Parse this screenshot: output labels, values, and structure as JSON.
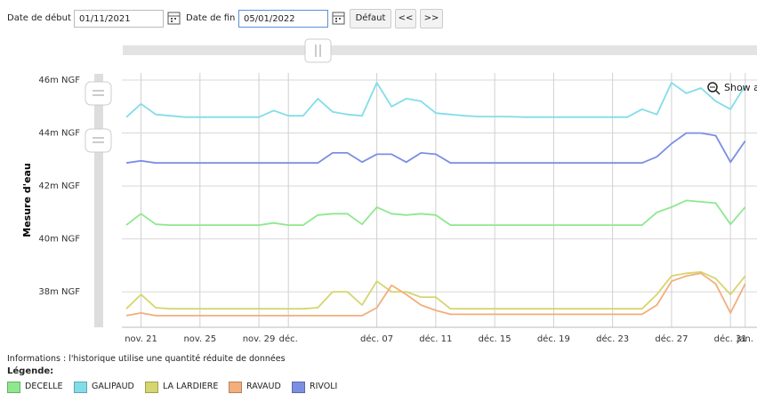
{
  "controls": {
    "start_label": "Date de début :",
    "start_value": "01/11/2021",
    "end_label": "Date de fin :",
    "end_value": "05/01/2022",
    "default_button": "Défaut",
    "prev": "<<",
    "next": ">>"
  },
  "chart_data": {
    "type": "line",
    "ylabel": "Mesure d'eau",
    "zoom_button": "Show all",
    "x": [
      19,
      20,
      21,
      22,
      23,
      24,
      25,
      26,
      27,
      28,
      29,
      30,
      31,
      32,
      33,
      34,
      35,
      36,
      37,
      38,
      39,
      40,
      41,
      42,
      43,
      44,
      45,
      46,
      47,
      48,
      49,
      50,
      51,
      52,
      53,
      54,
      55,
      56,
      57,
      58,
      59,
      60,
      61
    ],
    "xlim": [
      18.7,
      61.8
    ],
    "xticks": [
      {
        "value": 20,
        "label": "nov. 21"
      },
      {
        "value": 24,
        "label": "nov. 25"
      },
      {
        "value": 28,
        "label": "nov. 29"
      },
      {
        "value": 30,
        "label": "déc."
      },
      {
        "value": 36,
        "label": "déc. 07"
      },
      {
        "value": 40,
        "label": "déc. 11"
      },
      {
        "value": 44,
        "label": "déc. 15"
      },
      {
        "value": 48,
        "label": "déc. 19"
      },
      {
        "value": 52,
        "label": "déc. 23"
      },
      {
        "value": 56,
        "label": "déc. 27"
      },
      {
        "value": 60,
        "label": "déc. 31"
      },
      {
        "value": 61,
        "label": "jan."
      }
    ],
    "ylim": [
      36.66,
      46.27
    ],
    "yticks": [
      {
        "value": 38,
        "label": "38m NGF"
      },
      {
        "value": 40,
        "label": "40m NGF"
      },
      {
        "value": 42,
        "label": "42m NGF"
      },
      {
        "value": 44,
        "label": "44m NGF"
      },
      {
        "value": 46,
        "label": "46m NGF"
      }
    ],
    "grid": true,
    "series": [
      {
        "name": "DECELLE",
        "color": "#8ee88e",
        "values": [
          40.52,
          40.95,
          40.55,
          40.52,
          40.52,
          40.52,
          40.52,
          40.52,
          40.52,
          40.52,
          40.6,
          40.52,
          40.52,
          40.9,
          40.95,
          40.95,
          40.55,
          41.2,
          40.95,
          40.9,
          40.95,
          40.9,
          40.52,
          40.52,
          40.52,
          40.52,
          40.52,
          40.52,
          40.52,
          40.52,
          40.52,
          40.52,
          40.52,
          40.52,
          40.52,
          40.52,
          41.0,
          41.2,
          41.45,
          41.4,
          41.35,
          40.55,
          41.2
        ]
      },
      {
        "name": "GALIPAUD",
        "color": "#82dde9",
        "values": [
          44.6,
          45.1,
          44.7,
          44.65,
          44.6,
          44.6,
          44.6,
          44.6,
          44.6,
          44.6,
          44.85,
          44.65,
          44.65,
          45.3,
          44.8,
          44.7,
          44.65,
          45.9,
          45.0,
          45.3,
          45.2,
          44.75,
          44.7,
          44.65,
          44.62,
          44.62,
          44.62,
          44.6,
          44.6,
          44.6,
          44.6,
          44.6,
          44.6,
          44.6,
          44.6,
          44.9,
          44.7,
          45.9,
          45.5,
          45.7,
          45.2,
          44.9,
          45.8
        ]
      },
      {
        "name": "LA LARDIERE",
        "color": "#d6d56e",
        "values": [
          37.36,
          37.9,
          37.4,
          37.36,
          37.36,
          37.36,
          37.36,
          37.36,
          37.36,
          37.36,
          37.36,
          37.36,
          37.36,
          37.4,
          38.0,
          38.0,
          37.5,
          38.4,
          38.0,
          38.0,
          37.8,
          37.8,
          37.36,
          37.36,
          37.36,
          37.36,
          37.36,
          37.36,
          37.36,
          37.36,
          37.36,
          37.36,
          37.36,
          37.36,
          37.36,
          37.36,
          37.9,
          38.6,
          38.7,
          38.75,
          38.5,
          37.9,
          38.6
        ]
      },
      {
        "name": "RAVAUD",
        "color": "#f2ae7c",
        "values": [
          37.1,
          37.2,
          37.1,
          37.1,
          37.1,
          37.1,
          37.1,
          37.1,
          37.1,
          37.1,
          37.1,
          37.1,
          37.1,
          37.1,
          37.1,
          37.1,
          37.1,
          37.4,
          38.25,
          37.9,
          37.5,
          37.3,
          37.15,
          37.15,
          37.15,
          37.15,
          37.15,
          37.15,
          37.15,
          37.15,
          37.15,
          37.15,
          37.15,
          37.15,
          37.15,
          37.15,
          37.5,
          38.4,
          38.6,
          38.7,
          38.3,
          37.2,
          38.3
        ]
      },
      {
        "name": "RIVOLI",
        "color": "#7b8fe2",
        "values": [
          42.87,
          42.95,
          42.87,
          42.87,
          42.87,
          42.87,
          42.87,
          42.87,
          42.87,
          42.87,
          42.87,
          42.87,
          42.87,
          42.87,
          43.25,
          43.25,
          42.9,
          43.2,
          43.2,
          42.9,
          43.25,
          43.2,
          42.87,
          42.87,
          42.87,
          42.87,
          42.87,
          42.87,
          42.87,
          42.87,
          42.87,
          42.87,
          42.87,
          42.87,
          42.87,
          42.87,
          43.1,
          43.6,
          44.0,
          44.0,
          43.9,
          42.9,
          43.7
        ]
      }
    ]
  },
  "info": "Informations : l'historique utilise une quantité réduite de données",
  "legend_title": "Légende:"
}
